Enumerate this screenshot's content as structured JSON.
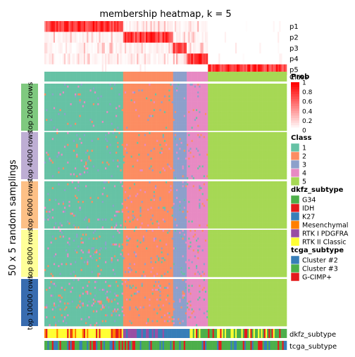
{
  "chart_data": {
    "type": "heatmap",
    "title": "membership heatmap, k = 5",
    "ylabel": "50 x 5 random samplings",
    "colors": {
      "class": {
        "1": "#66C2A5",
        "2": "#FC8D62",
        "3": "#8DA0CB",
        "4": "#E78AC3",
        "5": "#A6D854"
      },
      "prob_low": "#FFFFFF",
      "prob_high": "#FF0000",
      "dkfz_subtype": {
        "G34": "#4DAF4A",
        "IDH": "#E41A1C",
        "K27": "#377EB8",
        "Mesenchymal": "#FF7F00",
        "RTK I PDGFRA": "#984EA3",
        "RTK II Classic": "#FFFF33"
      },
      "tcga_subtype": {
        "Cluster #2": "#377EB8",
        "Cluster #3": "#4DAF4A",
        "G-CIMP+": "#E41A1C"
      }
    },
    "prob_rows": [
      "p1",
      "p2",
      "p3",
      "p4",
      "p5"
    ],
    "class_row_label": "Class",
    "row_groups": [
      {
        "label": "top 2000 rows",
        "color": "#7FC97F"
      },
      {
        "label": "top 4000 rows",
        "color": "#BEAED4"
      },
      {
        "label": "top 6000 rows",
        "color": "#FDC086"
      },
      {
        "label": "top 8000 rows",
        "color": "#FFFF99"
      },
      {
        "label": "top 10000 rows",
        "color": "#386CB0"
      }
    ],
    "class_column_fractions": [
      {
        "class": "1",
        "fraction": 0.322
      },
      {
        "class": "2",
        "fraction": 0.212
      },
      {
        "class": "3",
        "fraction": 0.053
      },
      {
        "class": "4",
        "fraction": 0.085
      },
      {
        "class": "5",
        "fraction": 0.328
      }
    ],
    "annotation_rows": [
      "dkfz_subtype",
      "tcga_subtype"
    ],
    "legends": {
      "prob": {
        "title": "Prob",
        "ticks": [
          "1",
          "0.8",
          "0.6",
          "0.4",
          "0.2",
          "0"
        ]
      },
      "class": {
        "title": "Class",
        "items": [
          "1",
          "2",
          "3",
          "4",
          "5"
        ]
      },
      "dkfz_subtype": {
        "title": "dkfz_subtype",
        "items": [
          "G34",
          "IDH",
          "K27",
          "Mesenchymal",
          "RTK I PDGFRA",
          "RTK II Classic"
        ]
      },
      "tcga_subtype": {
        "title": "tcga_subtype",
        "items": [
          "Cluster #2",
          "Cluster #3",
          "G-CIMP+"
        ]
      }
    }
  }
}
